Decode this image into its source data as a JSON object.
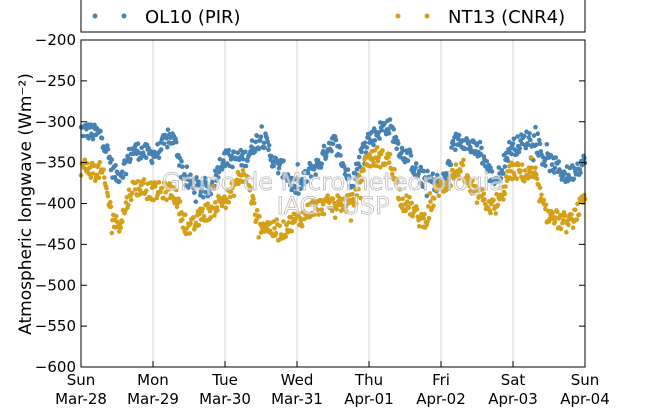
{
  "chart_data": {
    "type": "scatter",
    "title": "",
    "ylabel": "Atmospheric longwave (Wm⁻²)",
    "xlabel": "",
    "ylim": [
      -600,
      -200
    ],
    "yticks": [
      -200,
      -250,
      -300,
      -350,
      -400,
      -450,
      -500,
      -550,
      -600
    ],
    "xlim_days": [
      0,
      7
    ],
    "xticks": [
      {
        "day": "Sun",
        "date": "Mar-28"
      },
      {
        "day": "Mon",
        "date": "Mar-29"
      },
      {
        "day": "Tue",
        "date": "Mar-30"
      },
      {
        "day": "Wed",
        "date": "Mar-31"
      },
      {
        "day": "Thu",
        "date": "Apr-01"
      },
      {
        "day": "Fri",
        "date": "Apr-02"
      },
      {
        "day": "Sat",
        "date": "Apr-03"
      },
      {
        "day": "Sun",
        "date": "Apr-04"
      }
    ],
    "grid": "vertical",
    "legend_position": "top",
    "series": [
      {
        "name": "OL10 (PIR)",
        "color": "#4682b4",
        "anchors": [
          [
            "Mar-28 00:00",
            -310
          ],
          [
            "Mar-28 06:00",
            -315
          ],
          [
            "Mar-28 12:00",
            -365
          ],
          [
            "Mar-28 18:00",
            -335
          ],
          [
            "Mar-29 00:00",
            -340
          ],
          [
            "Mar-29 06:00",
            -320
          ],
          [
            "Mar-29 12:00",
            -375
          ],
          [
            "Mar-29 18:00",
            -385
          ],
          [
            "Mar-30 00:00",
            -345
          ],
          [
            "Mar-30 06:00",
            -345
          ],
          [
            "Mar-30 12:00",
            -320
          ],
          [
            "Mar-30 18:00",
            -355
          ],
          [
            "Mar-31 00:00",
            -380
          ],
          [
            "Mar-31 06:00",
            -355
          ],
          [
            "Mar-31 12:00",
            -325
          ],
          [
            "Mar-31 18:00",
            -370
          ],
          [
            "Apr-01 00:00",
            -320
          ],
          [
            "Apr-01 06:00",
            -305
          ],
          [
            "Apr-01 12:00",
            -340
          ],
          [
            "Apr-01 18:00",
            -370
          ],
          [
            "Apr-02 00:00",
            -375
          ],
          [
            "Apr-02 06:00",
            -320
          ],
          [
            "Apr-02 12:00",
            -335
          ],
          [
            "Apr-02 18:00",
            -370
          ],
          [
            "Apr-03 00:00",
            -330
          ],
          [
            "Apr-03 06:00",
            -320
          ],
          [
            "Apr-03 12:00",
            -350
          ],
          [
            "Apr-03 18:00",
            -365
          ],
          [
            "Apr-04 00:00",
            -350
          ]
        ]
      },
      {
        "name": "NT13 (CNR4)",
        "color": "#d4a017",
        "anchors": [
          [
            "Mar-28 00:00",
            -355
          ],
          [
            "Mar-28 06:00",
            -360
          ],
          [
            "Mar-28 12:00",
            -425
          ],
          [
            "Mar-28 18:00",
            -380
          ],
          [
            "Mar-29 00:00",
            -385
          ],
          [
            "Mar-29 06:00",
            -385
          ],
          [
            "Mar-29 12:00",
            -430
          ],
          [
            "Mar-29 18:00",
            -410
          ],
          [
            "Mar-30 00:00",
            -395
          ],
          [
            "Mar-30 06:00",
            -365
          ],
          [
            "Mar-30 12:00",
            -425
          ],
          [
            "Mar-30 18:00",
            -435
          ],
          [
            "Mar-31 00:00",
            -420
          ],
          [
            "Mar-31 06:00",
            -405
          ],
          [
            "Mar-31 12:00",
            -400
          ],
          [
            "Mar-31 18:00",
            -400
          ],
          [
            "Apr-01 00:00",
            -345
          ],
          [
            "Apr-01 06:00",
            -345
          ],
          [
            "Apr-01 12:00",
            -400
          ],
          [
            "Apr-01 18:00",
            -420
          ],
          [
            "Apr-02 00:00",
            -380
          ],
          [
            "Apr-02 06:00",
            -360
          ],
          [
            "Apr-02 12:00",
            -390
          ],
          [
            "Apr-02 18:00",
            -405
          ],
          [
            "Apr-03 00:00",
            -360
          ],
          [
            "Apr-03 06:00",
            -365
          ],
          [
            "Apr-03 12:00",
            -415
          ],
          [
            "Apr-03 18:00",
            -425
          ],
          [
            "Apr-04 00:00",
            -400
          ]
        ]
      }
    ]
  },
  "watermark": {
    "line1": "Grupo de Micrometeorologia",
    "line2": "IAG - USP"
  }
}
